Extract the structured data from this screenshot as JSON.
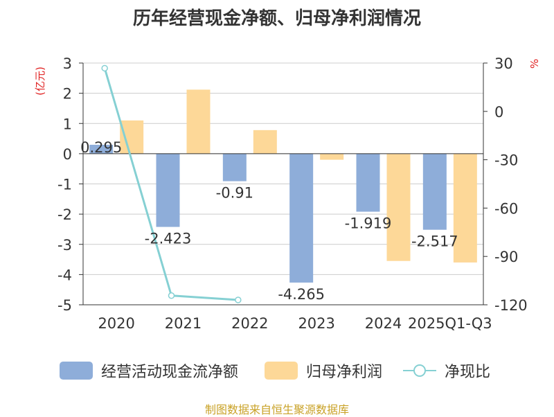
{
  "title": "历年经营现金净额、归母净利润情况",
  "left_unit": "(亿元)",
  "right_unit": "%",
  "source_note": "制图数据来自恒生聚源数据库",
  "colors": {
    "cash_flow": "#8eadd9",
    "net_profit": "#fdd898",
    "ratio": "#85d0d3",
    "unit_text": "#e02020",
    "source_text": "#c9a227"
  },
  "legend": [
    {
      "label": "经营活动现金流净额",
      "kind": "bar",
      "color": "#8eadd9"
    },
    {
      "label": "归母净利润",
      "kind": "bar",
      "color": "#fdd898"
    },
    {
      "label": "净现比",
      "kind": "line",
      "color": "#85d0d3"
    }
  ],
  "chart_data": {
    "type": "bar",
    "title": "历年经营现金净额、归母净利润情况",
    "categories": [
      "2020",
      "2021",
      "2022",
      "2023",
      "2024",
      "2025Q1-Q3"
    ],
    "series": [
      {
        "name": "经营活动现金流净额",
        "axis": "left",
        "type": "bar",
        "values": [
          0.295,
          -2.423,
          -0.91,
          -4.265,
          -1.919,
          -2.517
        ],
        "labels": [
          "0.295",
          "-2.423",
          "-0.91",
          "-4.265",
          "-1.919",
          "-2.517"
        ]
      },
      {
        "name": "归母净利润",
        "axis": "left",
        "type": "bar",
        "values": [
          1.1,
          2.12,
          0.78,
          -0.2,
          -3.55,
          -3.6
        ]
      },
      {
        "name": "净现比",
        "axis": "right",
        "type": "line",
        "values": [
          26.8,
          -114.3,
          -117.0,
          null,
          null,
          null
        ]
      }
    ],
    "y_left": {
      "label": "(亿元)",
      "ylim": [
        -5,
        3
      ],
      "ticks": [
        3,
        2,
        1,
        0,
        -1,
        -2,
        -3,
        -4,
        -5
      ]
    },
    "y_right": {
      "label": "%",
      "ylim": [
        -120,
        30
      ],
      "ticks": [
        30,
        0,
        -30,
        -60,
        -90,
        -120
      ]
    },
    "grid": true,
    "legend_position": "bottom"
  }
}
